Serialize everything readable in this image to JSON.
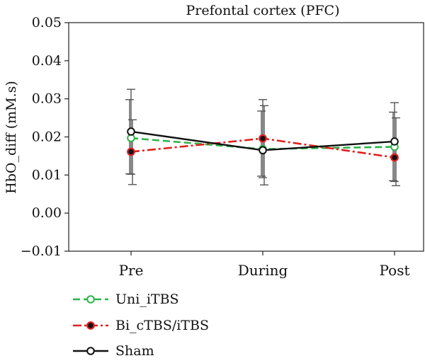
{
  "chart_data": {
    "type": "line",
    "title": "Prefontal cortex (PFC)",
    "ylabel": "HbO_diff (mM.s)",
    "xlabel": "",
    "categories": [
      "Pre",
      "During",
      "Post"
    ],
    "ylim": [
      -0.01,
      0.05
    ],
    "yticks": [
      -0.01,
      0.0,
      0.01,
      0.02,
      0.03,
      0.04,
      0.05
    ],
    "ytick_labels": [
      "−0.01",
      "0.00",
      "0.01",
      "0.02",
      "0.03",
      "0.04",
      "0.05"
    ],
    "grid": false,
    "legend_position": "bottom-left",
    "series": [
      {
        "name": "Uni_iTBS",
        "values": [
          0.0197,
          0.0168,
          0.0174
        ],
        "err_low": [
          0.0103,
          0.0097,
          0.0085
        ],
        "err_high": [
          0.0298,
          0.0268,
          0.0265
        ],
        "color": "#2db34a",
        "dash": "10,5",
        "marker": "open-circle"
      },
      {
        "name": "Bi_cTBS/iTBS",
        "values": [
          0.0161,
          0.0196,
          0.0146
        ],
        "err_low": [
          0.0075,
          0.0074,
          0.0072
        ],
        "err_high": [
          0.0245,
          0.0282,
          0.025
        ],
        "color": "#e02020",
        "dash": "12,4,3,4",
        "marker": "filled-circle"
      },
      {
        "name": "Sham",
        "values": [
          0.0214,
          0.0165,
          0.0188
        ],
        "err_low": [
          0.0102,
          0.0093,
          0.0083
        ],
        "err_high": [
          0.0325,
          0.0298,
          0.029
        ],
        "color": "#111111",
        "dash": "",
        "marker": "open-circle"
      }
    ]
  }
}
